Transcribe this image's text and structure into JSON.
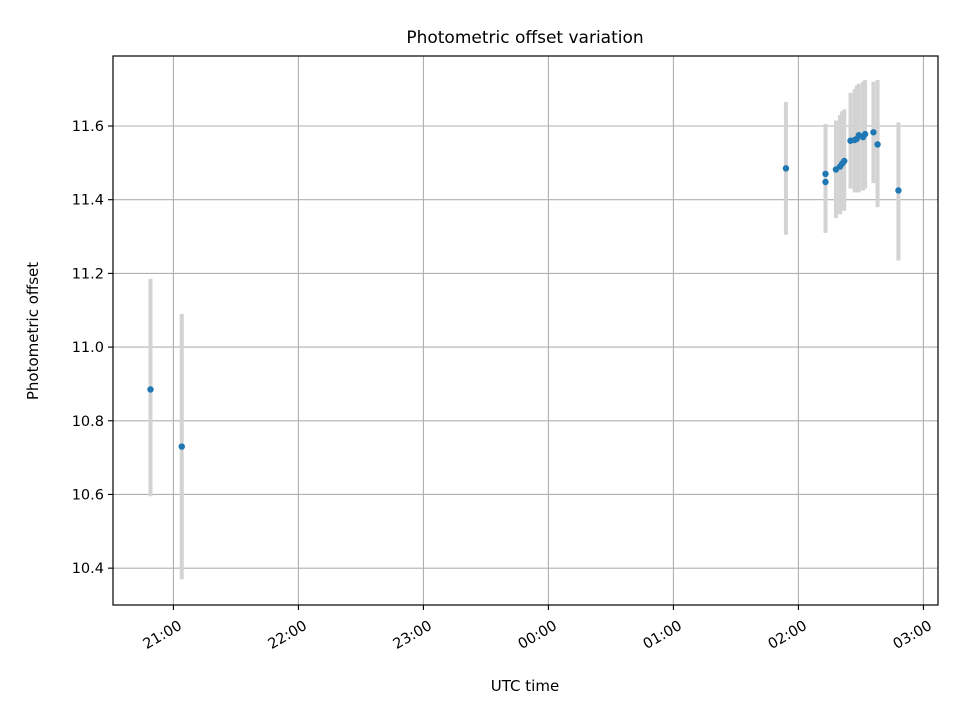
{
  "colors": {
    "background": "#ffffff",
    "point": "#1f77b4",
    "errorbar": "#d3d3d3",
    "grid": "#b0b0b0",
    "axes": "#000000"
  },
  "chart_data": {
    "type": "scatter",
    "title": "Photometric offset variation",
    "xlabel": "UTC time",
    "ylabel": "Photometric offset",
    "x_axis_kind": "time",
    "x_ticks": [
      "21:00",
      "22:00",
      "23:00",
      "00:00",
      "01:00",
      "02:00",
      "03:00"
    ],
    "y_ticks": [
      "10.4",
      "10.6",
      "10.8",
      "11.0",
      "11.2",
      "11.4",
      "11.6"
    ],
    "xlim": [
      "20:31",
      "03:07"
    ],
    "ylim": [
      10.3,
      11.79
    ],
    "grid": true,
    "legend": "none",
    "points": [
      {
        "x": "20:49",
        "y": 10.885,
        "err_low": 10.595,
        "err_high": 11.185
      },
      {
        "x": "21:04",
        "y": 10.73,
        "err_low": 10.37,
        "err_high": 11.09
      },
      {
        "x": "01:54",
        "y": 11.485,
        "err_low": 11.305,
        "err_high": 11.665
      },
      {
        "x": "02:13",
        "y": 11.47,
        "err_low": 11.31,
        "err_high": 11.605
      },
      {
        "x": "02:13",
        "y": 11.448,
        "err_low": 11.31,
        "err_high": 11.605
      },
      {
        "x": "02:18",
        "y": 11.482,
        "err_low": 11.35,
        "err_high": 11.615
      },
      {
        "x": "02:20",
        "y": 11.49,
        "err_low": 11.36,
        "err_high": 11.63
      },
      {
        "x": "02:21",
        "y": 11.498,
        "err_low": 11.37,
        "err_high": 11.64
      },
      {
        "x": "02:22",
        "y": 11.505,
        "err_low": 11.37,
        "err_high": 11.645
      },
      {
        "x": "02:25",
        "y": 11.56,
        "err_low": 11.43,
        "err_high": 11.69
      },
      {
        "x": "02:27",
        "y": 11.562,
        "err_low": 11.42,
        "err_high": 11.7
      },
      {
        "x": "02:28",
        "y": 11.565,
        "err_low": 11.42,
        "err_high": 11.71
      },
      {
        "x": "02:29",
        "y": 11.575,
        "err_low": 11.42,
        "err_high": 11.715
      },
      {
        "x": "02:31",
        "y": 11.57,
        "err_low": 11.425,
        "err_high": 11.72
      },
      {
        "x": "02:32",
        "y": 11.578,
        "err_low": 11.43,
        "err_high": 11.725
      },
      {
        "x": "02:36",
        "y": 11.583,
        "err_low": 11.445,
        "err_high": 11.72
      },
      {
        "x": "02:38",
        "y": 11.55,
        "err_low": 11.38,
        "err_high": 11.725
      },
      {
        "x": "02:48",
        "y": 11.425,
        "err_low": 11.235,
        "err_high": 11.61
      }
    ]
  }
}
